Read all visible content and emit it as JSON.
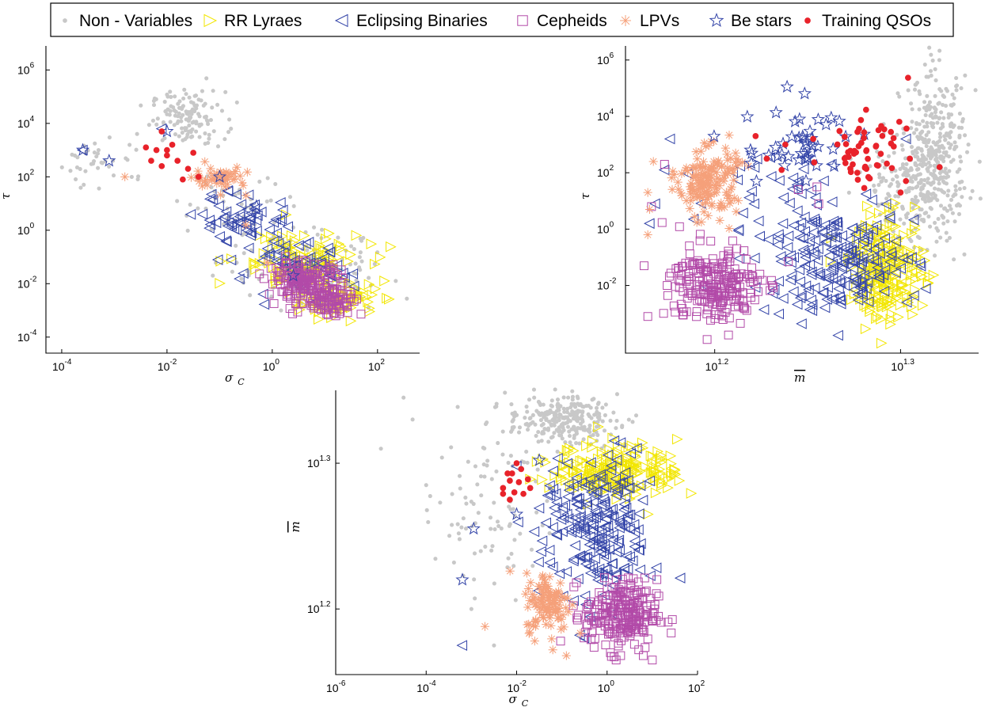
{
  "legend": {
    "position": "top-center",
    "entries": [
      {
        "name": "Non - Variables",
        "marker": "dot",
        "color": "#c8c8c8"
      },
      {
        "name": "RR Lyraes",
        "marker": "triangle-right",
        "color": "#f2e600"
      },
      {
        "name": "Eclipsing Binaries",
        "marker": "triangle-left",
        "color": "#3344a8"
      },
      {
        "name": "Cepheids",
        "marker": "square",
        "color": "#b24aa8"
      },
      {
        "name": "LPVs",
        "marker": "asterisk",
        "color": "#f5a07a"
      },
      {
        "name": "Be stars",
        "marker": "star",
        "color": "#3344a8"
      },
      {
        "name": "Training QSOs",
        "marker": "filled-dot",
        "color": "#e8222a"
      }
    ]
  },
  "chart_data": [
    {
      "type": "scatter",
      "panel": "top-left",
      "xlabel": "σ",
      "xlabel_sub": "C",
      "ylabel": "τ",
      "xscale": "log",
      "yscale": "log",
      "xlim_log10": [
        -4.3,
        2.8
      ],
      "ylim_log10": [
        -4.6,
        6.9
      ],
      "x_ticks": [
        {
          "label": "10",
          "exp": "-4",
          "v": -4
        },
        {
          "label": "10",
          "exp": "-2",
          "v": -2
        },
        {
          "label": "10",
          "exp": "0",
          "v": 0
        },
        {
          "label": "10",
          "exp": "2",
          "v": 2
        }
      ],
      "y_ticks": [
        {
          "label": "10",
          "exp": "-4",
          "v": -4
        },
        {
          "label": "10",
          "exp": "-2",
          "v": -2
        },
        {
          "label": "10",
          "exp": "0",
          "v": 0
        },
        {
          "label": "10",
          "exp": "2",
          "v": 2
        },
        {
          "label": "10",
          "exp": "4",
          "v": 4
        },
        {
          "label": "10",
          "exp": "6",
          "v": 6
        }
      ],
      "series": [
        {
          "name": "Non - Variables",
          "clusters": [
            {
              "cx": -1.6,
              "cy": 4.2,
              "sx": 0.35,
              "sy": 0.5,
              "n": 130
            },
            {
              "cx": -3.2,
              "cy": 2.6,
              "sx": 0.45,
              "sy": 0.5,
              "n": 40
            },
            {
              "cx": -0.6,
              "cy": 1.2,
              "sx": 0.6,
              "sy": 0.7,
              "n": 40
            },
            {
              "cx": 0.3,
              "cy": -1.0,
              "sx": 0.7,
              "sy": 0.6,
              "n": 80
            },
            {
              "cx": 1.0,
              "cy": -2.0,
              "sx": 0.6,
              "sy": 0.5,
              "n": 60
            }
          ]
        },
        {
          "name": "RR Lyraes",
          "clusters": [
            {
              "cx": 0.5,
              "cy": -1.2,
              "sx": 0.6,
              "sy": 0.6,
              "n": 120
            },
            {
              "cx": 1.3,
              "cy": -2.6,
              "sx": 0.35,
              "sy": 0.3,
              "n": 70
            }
          ]
        },
        {
          "name": "Eclipsing Binaries",
          "clusters": [
            {
              "cx": -0.5,
              "cy": 0.4,
              "sx": 0.45,
              "sy": 0.5,
              "n": 60
            },
            {
              "cx": 0.4,
              "cy": -1.5,
              "sx": 0.55,
              "sy": 0.5,
              "n": 60
            }
          ],
          "points": [
            [
              -3.6,
              3.0
            ],
            [
              -2.1,
              3.8
            ]
          ]
        },
        {
          "name": "Cepheids",
          "clusters": [
            {
              "cx": 0.6,
              "cy": -1.9,
              "sx": 0.35,
              "sy": 0.35,
              "n": 150
            },
            {
              "cx": 1.1,
              "cy": -2.6,
              "sx": 0.3,
              "sy": 0.3,
              "n": 90
            }
          ]
        },
        {
          "name": "LPVs",
          "clusters": [
            {
              "cx": -1.0,
              "cy": 2.0,
              "sx": 0.25,
              "sy": 0.2,
              "n": 50
            }
          ],
          "points": [
            [
              -2.8,
              2.0
            ],
            [
              -0.7,
              2.2
            ],
            [
              -0.5,
              1.3
            ],
            [
              -0.5,
              0.2
            ],
            [
              -0.1,
              -1.2
            ]
          ]
        },
        {
          "name": "Be stars",
          "points": [
            [
              -3.6,
              3.0
            ],
            [
              -3.1,
              2.6
            ],
            [
              -2.0,
              3.7
            ],
            [
              -1.0,
              2.0
            ],
            [
              -0.3,
              0.9
            ],
            [
              0.4,
              -1.7
            ]
          ]
        },
        {
          "name": "Training QSOs",
          "points": [
            [
              -2.1,
              3.7
            ],
            [
              -2.4,
              3.1
            ],
            [
              -2.2,
              3.0
            ],
            [
              -2.0,
              2.8
            ],
            [
              -1.8,
              2.6
            ],
            [
              -1.6,
              2.3
            ],
            [
              -2.3,
              2.6
            ],
            [
              -1.5,
              2.9
            ],
            [
              -2.1,
              2.4
            ],
            [
              -1.9,
              3.2
            ],
            [
              -1.4,
              2.0
            ],
            [
              -1.7,
              1.9
            ],
            [
              -2.0,
              3.0
            ]
          ]
        }
      ]
    },
    {
      "type": "scatter",
      "panel": "top-right",
      "xlabel": "m",
      "xlabel_overline": true,
      "ylabel": "τ",
      "xscale": "log",
      "yscale": "log",
      "xlim_log10": [
        1.152,
        1.342
      ],
      "ylim_log10": [
        -4.4,
        6.5
      ],
      "x_ticks": [
        {
          "label": "10",
          "exp": "1.2",
          "v": 1.2
        },
        {
          "label": "10",
          "exp": "1.3",
          "v": 1.3
        }
      ],
      "y_ticks": [
        {
          "label": "10",
          "exp": "-2",
          "v": -2
        },
        {
          "label": "10",
          "exp": "0",
          "v": 0
        },
        {
          "label": "10",
          "exp": "2",
          "v": 2
        },
        {
          "label": "10",
          "exp": "4",
          "v": 4
        },
        {
          "label": "10",
          "exp": "6",
          "v": 6
        }
      ],
      "series": [
        {
          "name": "Non - Variables",
          "clusters": [
            {
              "cx": 1.318,
              "cy": 2.5,
              "sx": 0.009,
              "sy": 1.4,
              "n": 400
            },
            {
              "cx": 1.3,
              "cy": 1.0,
              "sx": 0.012,
              "sy": 1.0,
              "n": 120
            }
          ]
        },
        {
          "name": "RR Lyraes",
          "clusters": [
            {
              "cx": 1.293,
              "cy": -1.4,
              "sx": 0.01,
              "sy": 0.9,
              "n": 230
            }
          ]
        },
        {
          "name": "Eclipsing Binaries",
          "clusters": [
            {
              "cx": 1.265,
              "cy": -1.2,
              "sx": 0.022,
              "sy": 0.9,
              "n": 200
            },
            {
              "cx": 1.24,
              "cy": 1.5,
              "sx": 0.02,
              "sy": 0.9,
              "n": 40
            }
          ],
          "points": [
            [
              1.176,
              3.2
            ],
            [
              1.165,
              0.2
            ],
            [
              1.173,
              2.1
            ],
            [
              1.168,
              0.9
            ],
            [
              1.303,
              3.2
            ]
          ]
        },
        {
          "name": "Cepheids",
          "clusters": [
            {
              "cx": 1.2,
              "cy": -2.0,
              "sx": 0.012,
              "sy": 0.7,
              "n": 230
            }
          ],
          "points": [
            [
              1.173,
              2.3
            ],
            [
              1.166,
              0.8
            ],
            [
              1.162,
              -1.3
            ],
            [
              1.164,
              -3.1
            ],
            [
              1.245,
              1.4
            ],
            [
              1.255,
              1.5
            ],
            [
              1.256,
              0.9
            ]
          ]
        },
        {
          "name": "LPVs",
          "clusters": [
            {
              "cx": 1.196,
              "cy": 1.7,
              "sx": 0.008,
              "sy": 0.6,
              "n": 170
            }
          ],
          "points": [
            [
              1.167,
              2.4
            ],
            [
              1.164,
              1.3
            ],
            [
              1.164,
              -0.2
            ],
            [
              1.165,
              0.7
            ]
          ]
        },
        {
          "name": "Be stars",
          "clusters": [
            {
              "cx": 1.245,
              "cy": 3.0,
              "sx": 0.015,
              "sy": 0.8,
              "n": 45
            }
          ]
        },
        {
          "name": "Training QSOs",
          "clusters": [
            {
              "cx": 1.283,
              "cy": 2.8,
              "sx": 0.011,
              "sy": 0.6,
              "n": 55
            }
          ],
          "points": [
            [
              1.222,
              3.3
            ],
            [
              1.228,
              2.5
            ],
            [
              1.236,
              2.1
            ],
            [
              1.305,
              2.5
            ],
            [
              1.3,
              1.3
            ],
            [
              1.321,
              2.2
            ],
            [
              1.238,
              3.0
            ],
            [
              1.253,
              3.2
            ]
          ]
        }
      ]
    },
    {
      "type": "scatter",
      "panel": "bottom",
      "xlabel": "σ",
      "xlabel_sub": "C",
      "ylabel": "m",
      "ylabel_overline": true,
      "xscale": "log",
      "yscale": "log",
      "xlim_log10": [
        -6.0,
        2.0
      ],
      "ylim_log10": [
        1.155,
        1.35
      ],
      "x_ticks": [
        {
          "label": "10",
          "exp": "-6",
          "v": -6
        },
        {
          "label": "10",
          "exp": "-4",
          "v": -4
        },
        {
          "label": "10",
          "exp": "-2",
          "v": -2
        },
        {
          "label": "10",
          "exp": "0",
          "v": 0
        },
        {
          "label": "10",
          "exp": "2",
          "v": 2
        }
      ],
      "y_ticks": [
        {
          "label": "10",
          "exp": "1.2",
          "v": 1.2
        },
        {
          "label": "10",
          "exp": "1.3",
          "v": 1.3
        }
      ],
      "series": [
        {
          "name": "Non - Variables",
          "clusters": [
            {
              "cx": -1.0,
              "cy": 1.33,
              "sx": 0.6,
              "sy": 0.008,
              "n": 260
            },
            {
              "cx": -2.6,
              "cy": 1.27,
              "sx": 0.6,
              "sy": 0.03,
              "n": 90
            }
          ],
          "points": [
            [
              -4.5,
              1.345
            ],
            [
              -4.3,
              1.33
            ],
            [
              -5.0,
              1.31
            ],
            [
              -4.0,
              1.285
            ],
            [
              -3.0,
              1.2
            ],
            [
              -2.5,
              1.175
            ]
          ]
        },
        {
          "name": "RR Lyraes",
          "clusters": [
            {
              "cx": 0.2,
              "cy": 1.295,
              "sx": 0.7,
              "sy": 0.009,
              "n": 210
            }
          ],
          "points": [
            [
              0.9,
              1.265
            ],
            [
              1.4,
              1.305
            ],
            [
              -0.2,
              1.325
            ]
          ]
        },
        {
          "name": "Eclipsing Binaries",
          "clusters": [
            {
              "cx": -0.2,
              "cy": 1.255,
              "sx": 0.6,
              "sy": 0.025,
              "n": 220
            }
          ],
          "points": [
            [
              -3.2,
              1.175
            ],
            [
              -2.0,
              1.298
            ],
            [
              -0.5,
              1.18
            ],
            [
              -0.6,
              1.182
            ]
          ]
        },
        {
          "name": "Cepheids",
          "clusters": [
            {
              "cx": 0.3,
              "cy": 1.196,
              "sx": 0.4,
              "sy": 0.012,
              "n": 230
            }
          ],
          "points": [
            [
              0.2,
              1.165
            ],
            [
              0.3,
              1.168
            ],
            [
              0.8,
              1.168
            ],
            [
              1.0,
              1.165
            ],
            [
              0.7,
              1.172
            ]
          ]
        },
        {
          "name": "LPVs",
          "clusters": [
            {
              "cx": -1.3,
              "cy": 1.205,
              "sx": 0.25,
              "sy": 0.01,
              "n": 110
            }
          ],
          "points": [
            [
              -2.7,
              1.188
            ],
            [
              -1.6,
              1.178
            ],
            [
              -1.2,
              1.172
            ],
            [
              -0.9,
              1.168
            ]
          ]
        },
        {
          "name": "Be stars",
          "points": [
            [
              -3.2,
              1.22
            ],
            [
              -2.95,
              1.255
            ],
            [
              -2.0,
              1.265
            ],
            [
              -1.5,
              1.302
            ]
          ]
        },
        {
          "name": "Training QSOs",
          "points": [
            [
              -2.2,
              1.293
            ],
            [
              -1.9,
              1.296
            ],
            [
              -2.15,
              1.288
            ],
            [
              -1.95,
              1.287
            ],
            [
              -1.75,
              1.289
            ],
            [
              -2.3,
              1.283
            ],
            [
              -2.05,
              1.28
            ],
            [
              -1.85,
              1.279
            ],
            [
              -2.15,
              1.275
            ],
            [
              -2.3,
              1.279
            ],
            [
              -1.7,
              1.283
            ],
            [
              -2.0,
              1.3
            ],
            [
              -2.1,
              1.293
            ]
          ]
        }
      ]
    }
  ]
}
